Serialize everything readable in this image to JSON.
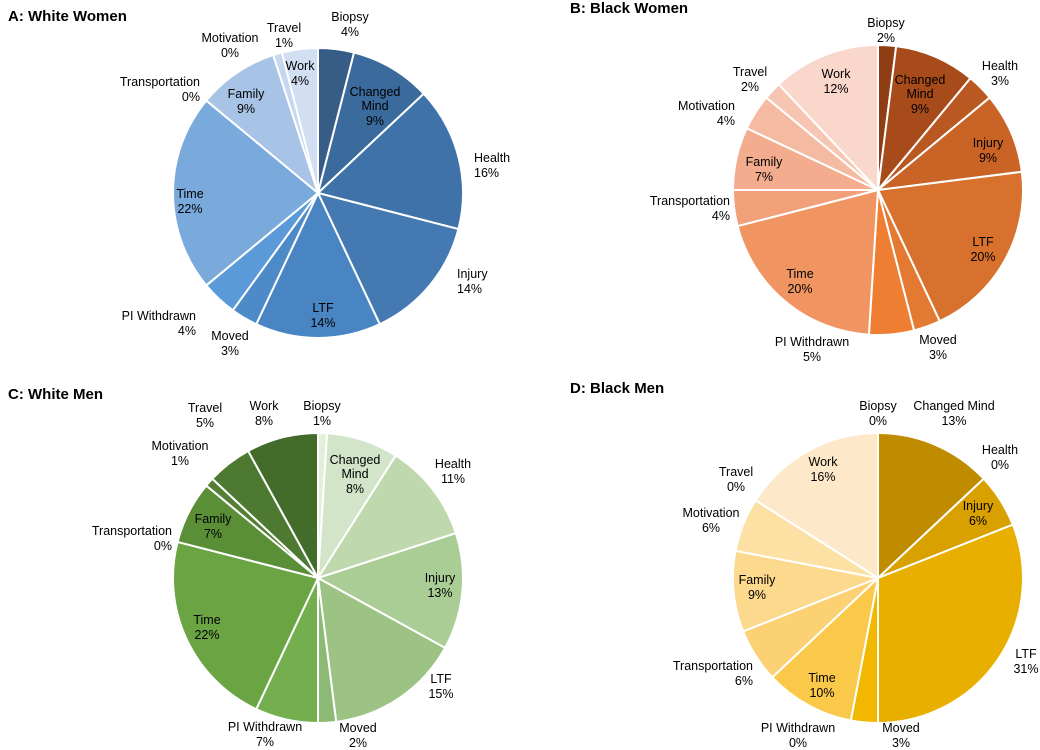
{
  "chart_data": [
    {
      "type": "pie",
      "title": "A: White Women",
      "slices": [
        {
          "label": "Biopsy",
          "value": 4,
          "pct_label": "4%",
          "color": "#375d87"
        },
        {
          "label": "Changed Mind",
          "value": 9,
          "pct_label": "9%",
          "color": "#3b6b9c"
        },
        {
          "label": "Health",
          "value": 16,
          "pct_label": "16%",
          "color": "#3f72a8"
        },
        {
          "label": "Injury",
          "value": 14,
          "pct_label": "14%",
          "color": "#4479b2"
        },
        {
          "label": "LTF",
          "value": 14,
          "pct_label": "14%",
          "color": "#4a85c3"
        },
        {
          "label": "Moved",
          "value": 3,
          "pct_label": "3%",
          "color": "#4d8ac8"
        },
        {
          "label": "PI Withdrawn",
          "value": 4,
          "pct_label": "4%",
          "color": "#5a9ad8"
        },
        {
          "label": "Time",
          "value": 22,
          "pct_label": "22%",
          "color": "#7aa9db"
        },
        {
          "label": "Transportation",
          "value": 0,
          "pct_label": "0%",
          "color": "#8fb6e0"
        },
        {
          "label": "Family",
          "value": 9,
          "pct_label": "9%",
          "color": "#a7c3e6"
        },
        {
          "label": "Motivation",
          "value": 0,
          "pct_label": "0%",
          "color": "#bcd1ec"
        },
        {
          "label": "Travel",
          "value": 1,
          "pct_label": "1%",
          "color": "#c6d8ef"
        },
        {
          "label": "Work",
          "value": 4,
          "pct_label": "4%",
          "color": "#d2dff2"
        }
      ]
    },
    {
      "type": "pie",
      "title": "B: Black Women",
      "slices": [
        {
          "label": "Biopsy",
          "value": 2,
          "pct_label": "2%",
          "color": "#8e3e12"
        },
        {
          "label": "Changed Mind",
          "value": 9,
          "pct_label": "9%",
          "color": "#a84b1a"
        },
        {
          "label": "Health",
          "value": 3,
          "pct_label": "3%",
          "color": "#b95820"
        },
        {
          "label": "Injury",
          "value": 9,
          "pct_label": "9%",
          "color": "#c96326"
        },
        {
          "label": "LTF",
          "value": 20,
          "pct_label": "20%",
          "color": "#d8712d"
        },
        {
          "label": "Moved",
          "value": 3,
          "pct_label": "3%",
          "color": "#e47a31"
        },
        {
          "label": "PI Withdrawn",
          "value": 5,
          "pct_label": "5%",
          "color": "#ee7f32"
        },
        {
          "label": "Time",
          "value": 20,
          "pct_label": "20%",
          "color": "#f09561"
        },
        {
          "label": "Transportation",
          "value": 4,
          "pct_label": "4%",
          "color": "#f2a07a"
        },
        {
          "label": "Family",
          "value": 7,
          "pct_label": "7%",
          "color": "#f3ad8e"
        },
        {
          "label": "Motivation",
          "value": 4,
          "pct_label": "4%",
          "color": "#f5bba2"
        },
        {
          "label": "Travel",
          "value": 2,
          "pct_label": "2%",
          "color": "#f7c6b2"
        },
        {
          "label": "Work",
          "value": 12,
          "pct_label": "12%",
          "color": "#f9d8cb"
        }
      ]
    },
    {
      "type": "pie",
      "title": "C: White Men",
      "slices": [
        {
          "label": "Biopsy",
          "value": 1,
          "pct_label": "1%",
          "color": "#e3eedb"
        },
        {
          "label": "Changed Mind",
          "value": 8,
          "pct_label": "8%",
          "color": "#d3e5c8"
        },
        {
          "label": "Health",
          "value": 11,
          "pct_label": "11%",
          "color": "#bfd8ae"
        },
        {
          "label": "Injury",
          "value": 13,
          "pct_label": "13%",
          "color": "#aacd95"
        },
        {
          "label": "LTF",
          "value": 15,
          "pct_label": "15%",
          "color": "#9cc384"
        },
        {
          "label": "Moved",
          "value": 2,
          "pct_label": "2%",
          "color": "#8cb974"
        },
        {
          "label": "PI Withdrawn",
          "value": 7,
          "pct_label": "7%",
          "color": "#74ae4e"
        },
        {
          "label": "Time",
          "value": 22,
          "pct_label": "22%",
          "color": "#6aa443"
        },
        {
          "label": "Transportation",
          "value": 0,
          "pct_label": "0%",
          "color": "#5f963b"
        },
        {
          "label": "Family",
          "value": 7,
          "pct_label": "7%",
          "color": "#5a8f37"
        },
        {
          "label": "Motivation",
          "value": 1,
          "pct_label": "1%",
          "color": "#527f33"
        },
        {
          "label": "Travel",
          "value": 5,
          "pct_label": "5%",
          "color": "#4d7a30"
        },
        {
          "label": "Work",
          "value": 8,
          "pct_label": "8%",
          "color": "#436c2b"
        }
      ]
    },
    {
      "type": "pie",
      "title": "D: Black Men",
      "slices": [
        {
          "label": "Biopsy",
          "value": 0,
          "pct_label": "0%",
          "color": "#a87a00"
        },
        {
          "label": "Changed Mind",
          "value": 13,
          "pct_label": "13%",
          "color": "#bf8c00"
        },
        {
          "label": "Health",
          "value": 0,
          "pct_label": "0%",
          "color": "#cc9500"
        },
        {
          "label": "Injury",
          "value": 6,
          "pct_label": "6%",
          "color": "#d9a100"
        },
        {
          "label": "LTF",
          "value": 31,
          "pct_label": "31%",
          "color": "#e8af00"
        },
        {
          "label": "Moved",
          "value": 3,
          "pct_label": "3%",
          "color": "#f2b800"
        },
        {
          "label": "PI Withdrawn",
          "value": 0,
          "pct_label": "0%",
          "color": "#f6c21a"
        },
        {
          "label": "Time",
          "value": 10,
          "pct_label": "10%",
          "color": "#fbc94a"
        },
        {
          "label": "Transportation",
          "value": 6,
          "pct_label": "6%",
          "color": "#fbd174"
        },
        {
          "label": "Family",
          "value": 9,
          "pct_label": "9%",
          "color": "#fcd98d"
        },
        {
          "label": "Motivation",
          "value": 6,
          "pct_label": "6%",
          "color": "#fde0a4"
        },
        {
          "label": "Travel",
          "value": 0,
          "pct_label": "0%",
          "color": "#fde5b4"
        },
        {
          "label": "Work",
          "value": 16,
          "pct_label": "16%",
          "color": "#fde9c9"
        }
      ]
    }
  ]
}
